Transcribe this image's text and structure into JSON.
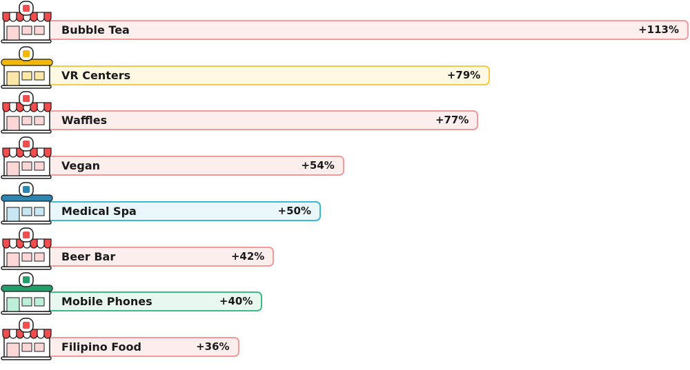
{
  "chart_data": {
    "type": "bar",
    "orientation": "horizontal",
    "title": "",
    "xlabel": "",
    "ylabel": "",
    "xlim": [
      0,
      113
    ],
    "grid": false,
    "categories": [
      "Bubble Tea",
      "VR Centers",
      "Waffles",
      "Vegan",
      "Medical Spa",
      "Beer Bar",
      "Mobile Phones",
      "Filipino Food"
    ],
    "values": [
      113,
      79,
      77,
      54,
      50,
      42,
      40,
      36
    ],
    "value_labels": [
      "+113%",
      "+79%",
      "+77%",
      "+54%",
      "+50%",
      "+42%",
      "+40%",
      "+36%"
    ],
    "store_types": [
      "restaurant",
      "entertainment",
      "restaurant",
      "restaurant",
      "health",
      "restaurant",
      "retail",
      "restaurant"
    ]
  },
  "theme": {
    "restaurant": {
      "fill": "#fdeeee",
      "stroke": "#f29a9a",
      "awning": "#f04e4e",
      "shop": "#fbd7d7"
    },
    "entertainment": {
      "fill": "#fff8e3",
      "stroke": "#f7c948",
      "awning": "#f5b800",
      "shop": "#fde7a8"
    },
    "health": {
      "fill": "#e9f7fb",
      "stroke": "#3bb8d6",
      "awning": "#2e86b0",
      "shop": "#c7e8f3"
    },
    "retail": {
      "fill": "#e8f8f1",
      "stroke": "#3dbb87",
      "awning": "#22a06b",
      "shop": "#bdeed7"
    }
  }
}
